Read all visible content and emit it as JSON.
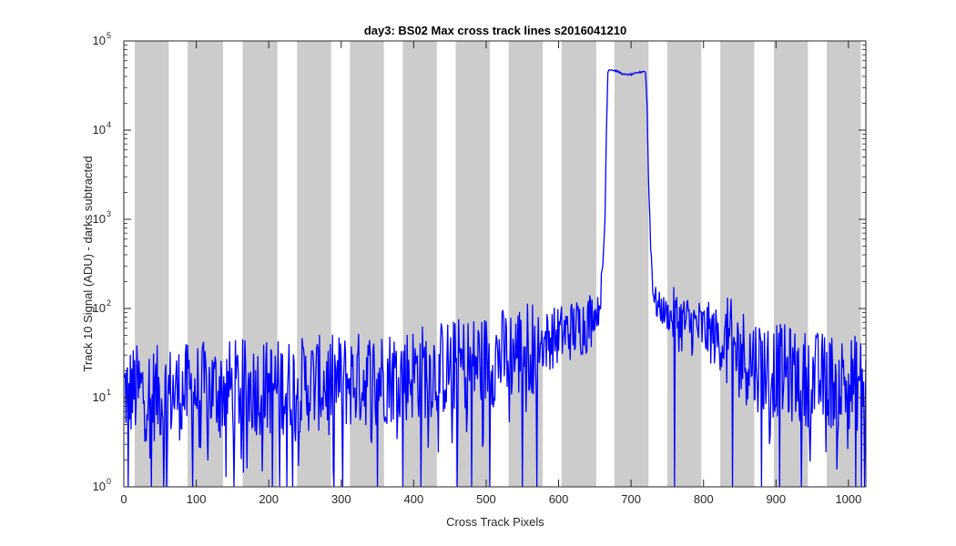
{
  "chart_data": {
    "type": "line",
    "title": "day3: BS02  Max cross track lines  s2016041210",
    "xlabel": "Cross Track Pixels",
    "ylabel": "Track 10 Signal (ADU) - darks subtracted",
    "xlim": [
      0,
      1024
    ],
    "ylim": [
      1,
      100000
    ],
    "yscale": "log",
    "grid": false,
    "x_ticks": [
      0,
      100,
      200,
      300,
      400,
      500,
      600,
      700,
      800,
      900,
      1000
    ],
    "y_ticks": [
      {
        "base": "10",
        "exp": "0"
      },
      {
        "base": "10",
        "exp": "1"
      },
      {
        "base": "10",
        "exp": "2"
      },
      {
        "base": "10",
        "exp": "3"
      },
      {
        "base": "10",
        "exp": "4"
      },
      {
        "base": "10",
        "exp": "5"
      }
    ],
    "shaded_bands": [
      [
        15,
        62
      ],
      [
        88,
        137
      ],
      [
        164,
        212
      ],
      [
        239,
        286
      ],
      [
        312,
        359
      ],
      [
        385,
        432
      ],
      [
        458,
        505
      ],
      [
        531,
        578
      ],
      [
        604,
        652
      ],
      [
        677,
        724
      ],
      [
        750,
        797
      ],
      [
        823,
        870
      ],
      [
        897,
        944
      ],
      [
        970,
        1017
      ]
    ],
    "series": [
      {
        "color": "#0000ff",
        "baseline": [
          [
            0,
            12
          ],
          [
            50,
            11
          ],
          [
            100,
            12
          ],
          [
            150,
            13
          ],
          [
            200,
            13
          ],
          [
            250,
            14
          ],
          [
            300,
            15
          ],
          [
            350,
            17
          ],
          [
            400,
            19
          ],
          [
            450,
            22
          ],
          [
            500,
            26
          ],
          [
            540,
            32
          ],
          [
            570,
            40
          ],
          [
            600,
            50
          ],
          [
            620,
            58
          ],
          [
            640,
            70
          ],
          [
            655,
            95
          ],
          [
            660,
            200
          ],
          [
            664,
            1000
          ],
          [
            666,
            10000
          ],
          [
            668,
            45000
          ],
          [
            670,
            48000
          ],
          [
            680,
            46000
          ],
          [
            690,
            42000
          ],
          [
            700,
            42000
          ],
          [
            710,
            44000
          ],
          [
            718,
            46000
          ],
          [
            720,
            44000
          ],
          [
            722,
            20000
          ],
          [
            724,
            3000
          ],
          [
            727,
            500
          ],
          [
            731,
            150
          ],
          [
            735,
            110
          ],
          [
            750,
            85
          ],
          [
            770,
            70
          ],
          [
            790,
            62
          ],
          [
            810,
            52
          ],
          [
            830,
            40
          ],
          [
            850,
            32
          ],
          [
            870,
            25
          ],
          [
            900,
            20
          ],
          [
            950,
            16
          ],
          [
            1000,
            15
          ],
          [
            1024,
            14
          ]
        ],
        "noisy_ranges": [
          [
            0,
            660
          ],
          [
            726,
            1024
          ]
        ],
        "dropouts_x": [
          6,
          38,
          55,
          59,
          95,
          152,
          205,
          215,
          225,
          233,
          290,
          302,
          350,
          385,
          410,
          460,
          480,
          505,
          550,
          570,
          760,
          840,
          880,
          905,
          935,
          1010,
          1018,
          1022
        ]
      }
    ]
  }
}
